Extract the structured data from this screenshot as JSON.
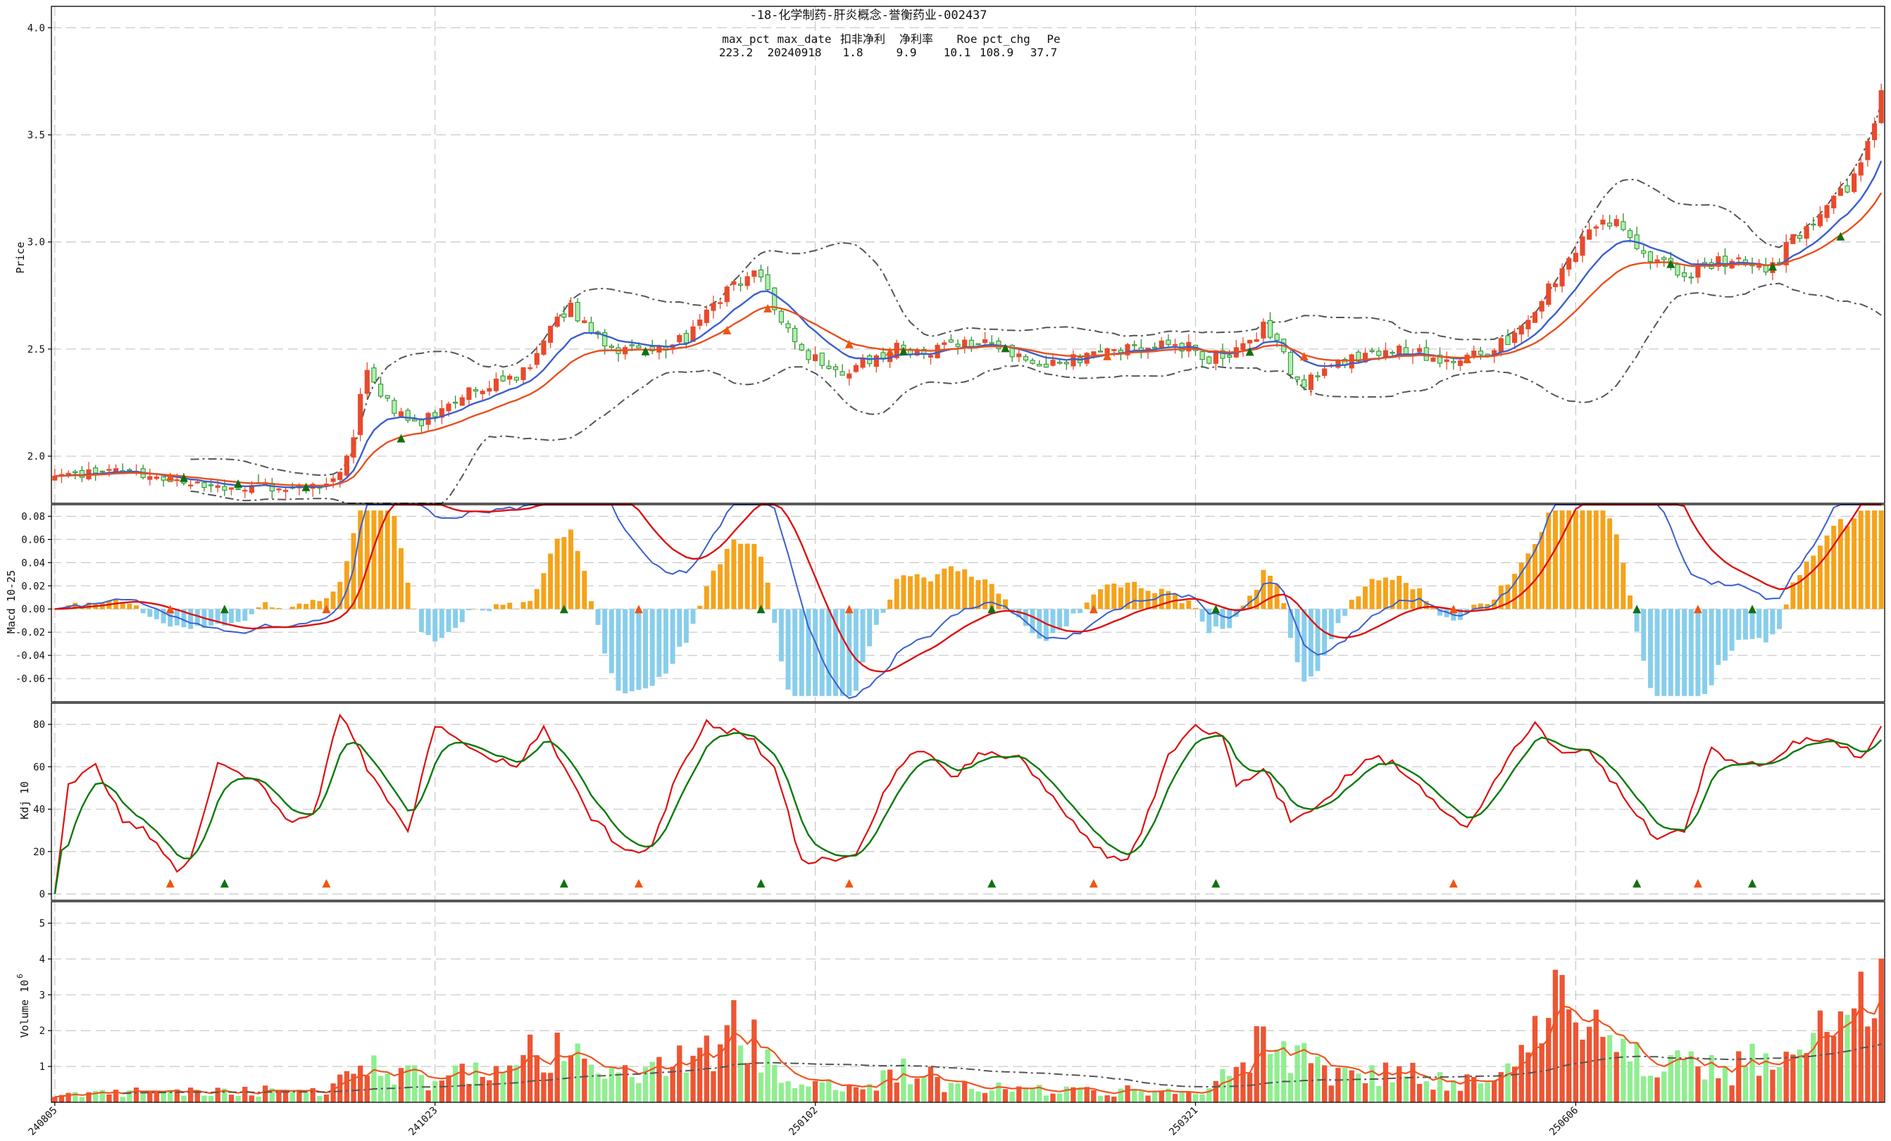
{
  "chart_data": {
    "type": "candlestick",
    "title": "-18-化学制药-肝炎概念-誉衡药业-002437",
    "stats": {
      "headers": [
        "max_pct",
        "max_date",
        "扣非净利",
        "净利率",
        "Roe",
        "pct_chg",
        "Pe"
      ],
      "values": [
        "223.2",
        "20240918",
        "1.8",
        "9.9",
        "10.1",
        "108.9",
        "37.7"
      ]
    },
    "x_tick_labels": [
      "240805",
      "241023",
      "250102",
      "250321",
      "250606"
    ],
    "x_tick_bars": [
      0,
      56,
      112,
      168,
      224
    ],
    "n_bars": 270,
    "panels": {
      "price": {
        "ylabel": "Price",
        "ylim": [
          1.78,
          4.1
        ],
        "yticks": [
          2.0,
          2.5,
          3.0,
          3.5,
          4.0
        ],
        "ytick_labels": [
          "2.0",
          "2.5",
          "3.0",
          "3.5",
          "4.0"
        ],
        "close_anchors": [
          [
            0,
            1.9
          ],
          [
            10,
            1.93
          ],
          [
            18,
            1.87
          ],
          [
            26,
            1.85
          ],
          [
            36,
            1.86
          ],
          [
            40,
            1.85
          ],
          [
            42,
            1.92
          ],
          [
            44,
            2.1
          ],
          [
            45,
            2.3
          ],
          [
            46,
            2.4
          ],
          [
            50,
            2.2
          ],
          [
            54,
            2.15
          ],
          [
            56,
            2.2
          ],
          [
            60,
            2.3
          ],
          [
            66,
            2.35
          ],
          [
            70,
            2.4
          ],
          [
            74,
            2.65
          ],
          [
            76,
            2.7
          ],
          [
            80,
            2.55
          ],
          [
            82,
            2.48
          ],
          [
            86,
            2.52
          ],
          [
            90,
            2.5
          ],
          [
            93,
            2.56
          ],
          [
            96,
            2.7
          ],
          [
            100,
            2.8
          ],
          [
            104,
            2.85
          ],
          [
            107,
            2.6
          ],
          [
            112,
            2.45
          ],
          [
            116,
            2.4
          ],
          [
            120,
            2.45
          ],
          [
            124,
            2.5
          ],
          [
            130,
            2.5
          ],
          [
            136,
            2.55
          ],
          [
            140,
            2.48
          ],
          [
            146,
            2.42
          ],
          [
            152,
            2.46
          ],
          [
            158,
            2.5
          ],
          [
            166,
            2.52
          ],
          [
            170,
            2.46
          ],
          [
            176,
            2.52
          ],
          [
            178,
            2.6
          ],
          [
            180,
            2.55
          ],
          [
            182,
            2.4
          ],
          [
            184,
            2.35
          ],
          [
            188,
            2.4
          ],
          [
            192,
            2.47
          ],
          [
            198,
            2.5
          ],
          [
            204,
            2.45
          ],
          [
            210,
            2.48
          ],
          [
            214,
            2.55
          ],
          [
            218,
            2.65
          ],
          [
            222,
            2.9
          ],
          [
            226,
            3.05
          ],
          [
            230,
            3.12
          ],
          [
            234,
            2.95
          ],
          [
            240,
            2.85
          ],
          [
            246,
            2.92
          ],
          [
            252,
            2.87
          ],
          [
            256,
            3.0
          ],
          [
            260,
            3.15
          ],
          [
            264,
            3.25
          ],
          [
            268,
            3.55
          ],
          [
            270,
            3.9
          ]
        ],
        "buy_markers": [
          19,
          27,
          37,
          51,
          87,
          125,
          140,
          176,
          238,
          253,
          263
        ],
        "sell_markers": [
          17,
          99,
          105,
          117,
          123,
          155,
          184,
          208
        ],
        "ma_colors": [
          "#3a5fcd",
          "#e8501e"
        ],
        "band_color": "#555555"
      },
      "macd": {
        "ylabel": "Macd 10-25",
        "ylim": [
          -0.08,
          0.09
        ],
        "yticks": [
          -0.06,
          -0.04,
          -0.02,
          0.0,
          0.02,
          0.04,
          0.06,
          0.08
        ],
        "ytick_labels": [
          "-0.06",
          "-0.04",
          "-0.02",
          "0.00",
          "0.02",
          "0.04",
          "0.06",
          "0.08"
        ],
        "pos_color": "#f5a31a",
        "neg_color": "#87ceeb",
        "line_colors": [
          "#3a5fcd",
          "#dd1111"
        ]
      },
      "kdj": {
        "ylabel": "Kdj 10",
        "ylim": [
          -3,
          90
        ],
        "yticks": [
          0,
          20,
          40,
          60,
          80
        ],
        "ytick_labels": [
          "0",
          "20",
          "40",
          "60",
          "80"
        ],
        "k_anchors": [
          [
            0,
            0
          ],
          [
            2,
            50
          ],
          [
            6,
            60
          ],
          [
            10,
            35
          ],
          [
            14,
            28
          ],
          [
            18,
            12
          ],
          [
            20,
            18
          ],
          [
            24,
            60
          ],
          [
            30,
            55
          ],
          [
            34,
            35
          ],
          [
            38,
            36
          ],
          [
            42,
            85
          ],
          [
            46,
            60
          ],
          [
            52,
            30
          ],
          [
            56,
            80
          ],
          [
            62,
            68
          ],
          [
            68,
            60
          ],
          [
            72,
            80
          ],
          [
            78,
            40
          ],
          [
            84,
            20
          ],
          [
            88,
            22
          ],
          [
            92,
            60
          ],
          [
            96,
            80
          ],
          [
            102,
            75
          ],
          [
            106,
            60
          ],
          [
            110,
            15
          ],
          [
            118,
            18
          ],
          [
            124,
            60
          ],
          [
            128,
            68
          ],
          [
            132,
            55
          ],
          [
            136,
            65
          ],
          [
            142,
            66
          ],
          [
            148,
            40
          ],
          [
            154,
            20
          ],
          [
            158,
            15
          ],
          [
            160,
            30
          ],
          [
            164,
            65
          ],
          [
            168,
            78
          ],
          [
            172,
            75
          ],
          [
            174,
            50
          ],
          [
            178,
            60
          ],
          [
            182,
            35
          ],
          [
            186,
            40
          ],
          [
            190,
            55
          ],
          [
            194,
            65
          ],
          [
            198,
            60
          ],
          [
            204,
            40
          ],
          [
            208,
            30
          ],
          [
            212,
            55
          ],
          [
            218,
            80
          ],
          [
            222,
            65
          ],
          [
            226,
            68
          ],
          [
            232,
            42
          ],
          [
            236,
            25
          ],
          [
            240,
            30
          ],
          [
            244,
            70
          ],
          [
            248,
            60
          ],
          [
            252,
            62
          ],
          [
            256,
            70
          ],
          [
            260,
            74
          ],
          [
            266,
            65
          ],
          [
            270,
            82
          ]
        ],
        "marker_buy": [
          25,
          75,
          104,
          138,
          171,
          233,
          250
        ],
        "marker_sell": [
          17,
          40,
          86,
          117,
          153,
          206,
          242
        ],
        "line_colors": [
          "#dd1111",
          "#0a7a0a"
        ]
      },
      "volume": {
        "ylabel": "Volume",
        "ylabel_exp": "10",
        "ylabel_sup": "6",
        "ylim": [
          0,
          5.6
        ],
        "yticks": [
          1,
          2,
          3,
          4,
          5
        ],
        "ytick_labels": [
          "1",
          "2",
          "3",
          "4",
          "5"
        ],
        "up_color": "#ee5533",
        "down_color": "#90ee90",
        "ma_color": "#ee5522",
        "long_ma_color": "#555555"
      }
    }
  }
}
